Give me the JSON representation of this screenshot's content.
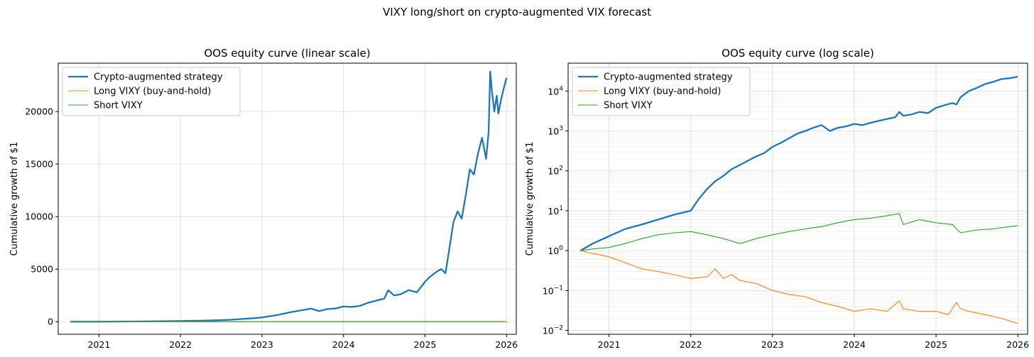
{
  "figure": {
    "suptitle": "VIXY long/short on crypto-augmented VIX forecast"
  },
  "colors": {
    "strategy": "#1f77b4",
    "long": "#ff7f0e",
    "short": "#2ca02c",
    "grid": "#d9d9d9"
  },
  "chart_data": [
    {
      "type": "line",
      "title": "OOS equity curve (linear scale)",
      "xlabel": "",
      "ylabel": "Cumulative growth of $1",
      "yscale": "linear",
      "xlim": [
        2020.5,
        2026.12
      ],
      "ylim": [
        -1200,
        24600
      ],
      "x_ticks": [
        2021,
        2022,
        2023,
        2024,
        2025,
        2026
      ],
      "x_tick_labels": [
        "2021",
        "2022",
        "2023",
        "2024",
        "2025",
        "2026"
      ],
      "y_ticks": [
        0,
        5000,
        10000,
        15000,
        20000
      ],
      "y_tick_labels": [
        "0",
        "5000",
        "10000",
        "15000",
        "20000"
      ],
      "grid": true,
      "legend": "upper left",
      "series": [
        {
          "name": "Crypto-augmented strategy",
          "x": [
            2020.65,
            2021.0,
            2021.5,
            2022.0,
            2022.3,
            2022.6,
            2022.9,
            2023.0,
            2023.2,
            2023.35,
            2023.5,
            2023.6,
            2023.7,
            2023.8,
            2023.9,
            2024.0,
            2024.1,
            2024.2,
            2024.3,
            2024.4,
            2024.5,
            2024.55,
            2024.62,
            2024.7,
            2024.8,
            2024.9,
            2025.0,
            2025.05,
            2025.1,
            2025.15,
            2025.2,
            2025.25,
            2025.3,
            2025.35,
            2025.4,
            2025.45,
            2025.5,
            2025.55,
            2025.6,
            2025.65,
            2025.7,
            2025.75,
            2025.78,
            2025.8,
            2025.82,
            2025.85,
            2025.88,
            2025.9,
            2025.93,
            2025.96,
            2026.0
          ],
          "values": [
            1,
            5,
            20,
            60,
            100,
            180,
            330,
            400,
            650,
            900,
            1100,
            1250,
            1000,
            1200,
            1250,
            1450,
            1400,
            1500,
            1800,
            2000,
            2200,
            3000,
            2500,
            2600,
            3000,
            2800,
            3800,
            4200,
            4500,
            4800,
            5000,
            4600,
            7000,
            9500,
            10500,
            9800,
            12000,
            14500,
            14000,
            16000,
            17500,
            15500,
            18000,
            23800,
            22000,
            20000,
            21500,
            19800,
            21000,
            22000,
            23200
          ]
        },
        {
          "name": "Long VIXY (buy-and-hold)",
          "x": [
            2020.65,
            2021.0,
            2022.0,
            2023.0,
            2024.0,
            2025.0,
            2026.0
          ],
          "values": [
            1,
            0.7,
            0.2,
            0.1,
            0.03,
            0.03,
            0.015
          ]
        },
        {
          "name": "Short VIXY",
          "x": [
            2020.65,
            2021.0,
            2022.0,
            2023.0,
            2024.0,
            2025.0,
            2026.0
          ],
          "values": [
            1,
            1.2,
            2.5,
            2.2,
            5,
            4.5,
            4
          ]
        }
      ]
    },
    {
      "type": "line",
      "title": "OOS equity curve (log scale)",
      "xlabel": "",
      "ylabel": "Cumulative growth of $1",
      "yscale": "log",
      "xlim": [
        2020.5,
        2026.12
      ],
      "ylim": [
        0.008,
        50000
      ],
      "x_ticks": [
        2021,
        2022,
        2023,
        2024,
        2025,
        2026
      ],
      "x_tick_labels": [
        "2021",
        "2022",
        "2023",
        "2024",
        "2025",
        "2026"
      ],
      "y_ticks": [
        0.01,
        0.1,
        1,
        10,
        100,
        1000,
        10000
      ],
      "y_tick_labels": [
        {
          "base": "10",
          "exp": "−2"
        },
        {
          "base": "10",
          "exp": "−1"
        },
        {
          "base": "10",
          "exp": "0"
        },
        {
          "base": "10",
          "exp": "1"
        },
        {
          "base": "10",
          "exp": "2"
        },
        {
          "base": "10",
          "exp": "3"
        },
        {
          "base": "10",
          "exp": "4"
        }
      ],
      "grid": true,
      "legend": "upper left",
      "series": [
        {
          "name": "Crypto-augmented strategy",
          "x": [
            2020.65,
            2020.8,
            2021.0,
            2021.2,
            2021.4,
            2021.6,
            2021.8,
            2022.0,
            2022.1,
            2022.2,
            2022.3,
            2022.4,
            2022.5,
            2022.6,
            2022.7,
            2022.8,
            2022.9,
            2023.0,
            2023.1,
            2023.2,
            2023.3,
            2023.4,
            2023.5,
            2023.6,
            2023.7,
            2023.8,
            2023.9,
            2024.0,
            2024.1,
            2024.2,
            2024.3,
            2024.4,
            2024.5,
            2024.55,
            2024.6,
            2024.7,
            2024.8,
            2024.9,
            2025.0,
            2025.1,
            2025.2,
            2025.25,
            2025.3,
            2025.4,
            2025.5,
            2025.6,
            2025.7,
            2025.8,
            2025.9,
            2026.0
          ],
          "values": [
            1,
            1.5,
            2.3,
            3.5,
            4.5,
            6,
            8,
            10,
            20,
            35,
            55,
            75,
            110,
            140,
            180,
            230,
            280,
            400,
            500,
            650,
            850,
            1000,
            1200,
            1400,
            1000,
            1200,
            1300,
            1500,
            1400,
            1600,
            1800,
            2000,
            2200,
            3000,
            2400,
            2600,
            3000,
            2800,
            3800,
            4400,
            5000,
            4600,
            7000,
            10000,
            12000,
            15000,
            17000,
            20000,
            21000,
            23000
          ]
        },
        {
          "name": "Long VIXY (buy-and-hold)",
          "x": [
            2020.65,
            2020.8,
            2021.0,
            2021.2,
            2021.4,
            2021.6,
            2021.8,
            2022.0,
            2022.2,
            2022.3,
            2022.4,
            2022.5,
            2022.6,
            2022.8,
            2023.0,
            2023.2,
            2023.4,
            2023.6,
            2023.8,
            2024.0,
            2024.2,
            2024.4,
            2024.55,
            2024.6,
            2024.8,
            2025.0,
            2025.15,
            2025.25,
            2025.3,
            2025.4,
            2025.6,
            2025.8,
            2026.0
          ],
          "values": [
            1,
            0.85,
            0.7,
            0.5,
            0.35,
            0.3,
            0.25,
            0.2,
            0.22,
            0.35,
            0.2,
            0.25,
            0.18,
            0.15,
            0.1,
            0.08,
            0.07,
            0.05,
            0.04,
            0.03,
            0.035,
            0.03,
            0.055,
            0.035,
            0.03,
            0.03,
            0.025,
            0.05,
            0.035,
            0.03,
            0.025,
            0.02,
            0.015
          ]
        },
        {
          "name": "Short VIXY",
          "x": [
            2020.65,
            2020.8,
            2021.0,
            2021.2,
            2021.4,
            2021.6,
            2021.8,
            2022.0,
            2022.2,
            2022.4,
            2022.6,
            2022.8,
            2023.0,
            2023.2,
            2023.4,
            2023.6,
            2023.8,
            2024.0,
            2024.2,
            2024.4,
            2024.55,
            2024.6,
            2024.8,
            2025.0,
            2025.2,
            2025.25,
            2025.3,
            2025.5,
            2025.7,
            2025.9,
            2026.0
          ],
          "values": [
            1,
            1.1,
            1.2,
            1.5,
            2.0,
            2.5,
            2.8,
            3.0,
            2.5,
            2.0,
            1.5,
            2.0,
            2.5,
            3.0,
            3.5,
            4.0,
            5.0,
            6.0,
            6.5,
            7.5,
            8.5,
            4.5,
            6.0,
            5.0,
            4.5,
            3.5,
            2.8,
            3.3,
            3.5,
            4.0,
            4.2
          ]
        }
      ]
    }
  ]
}
